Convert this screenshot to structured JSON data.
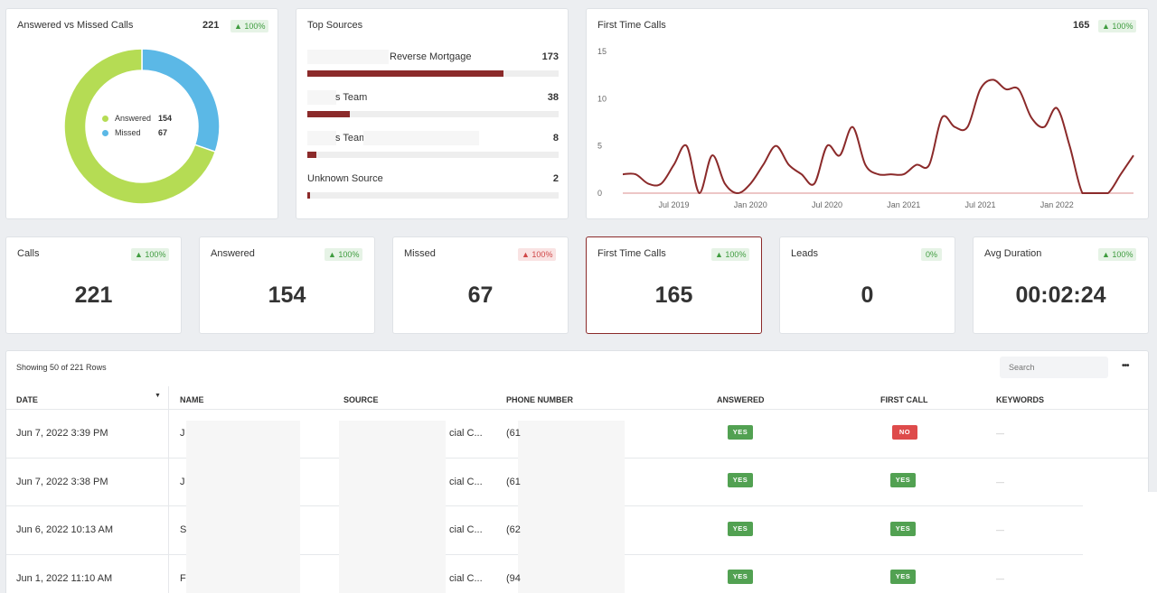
{
  "donut_card": {
    "title": "Answered vs Missed Calls",
    "total": "221",
    "change": "100%",
    "legend": [
      {
        "label": "Answered",
        "value": "154",
        "color": "#b5dc54"
      },
      {
        "label": "Missed",
        "value": "67",
        "color": "#5bb8e6"
      }
    ]
  },
  "sources_card": {
    "title": "Top Sources",
    "items": [
      {
        "label": "Reverse Mortgage",
        "count": "173",
        "fraction": 0.78
      },
      {
        "label": "s Team",
        "count": "38",
        "fraction": 0.17
      },
      {
        "label": "s Team",
        "count": "8",
        "fraction": 0.035
      },
      {
        "label": "Unknown Source",
        "count": "2",
        "fraction": 0.01
      }
    ]
  },
  "line_card": {
    "title": "First Time Calls",
    "total": "165",
    "change": "100%"
  },
  "chart_data": {
    "type": "line",
    "title": "First Time Calls",
    "ylim": [
      0,
      15
    ],
    "y_ticks": [
      "15",
      "10",
      "5",
      "0"
    ],
    "x_ticks": [
      "Jul 2019",
      "Jan 2020",
      "Jul 2020",
      "Jan 2021",
      "Jul 2021",
      "Jan 2022"
    ],
    "series": [
      {
        "color": "#8b2a2a",
        "points": [
          [
            "2019-03",
            2
          ],
          [
            "2019-04",
            2
          ],
          [
            "2019-05",
            1
          ],
          [
            "2019-06",
            1
          ],
          [
            "2019-07",
            3
          ],
          [
            "2019-08",
            5
          ],
          [
            "2019-09",
            0
          ],
          [
            "2019-10",
            4
          ],
          [
            "2019-11",
            1
          ],
          [
            "2019-12",
            0
          ],
          [
            "2020-01",
            1
          ],
          [
            "2020-02",
            3
          ],
          [
            "2020-03",
            5
          ],
          [
            "2020-04",
            3
          ],
          [
            "2020-05",
            2
          ],
          [
            "2020-06",
            1
          ],
          [
            "2020-07",
            5
          ],
          [
            "2020-08",
            4
          ],
          [
            "2020-09",
            7
          ],
          [
            "2020-10",
            3
          ],
          [
            "2020-11",
            2
          ],
          [
            "2020-12",
            2
          ],
          [
            "2021-01",
            2
          ],
          [
            "2021-02",
            3
          ],
          [
            "2021-03",
            3
          ],
          [
            "2021-04",
            8
          ],
          [
            "2021-05",
            7
          ],
          [
            "2021-06",
            7
          ],
          [
            "2021-07",
            11
          ],
          [
            "2021-08",
            12
          ],
          [
            "2021-09",
            11
          ],
          [
            "2021-10",
            11
          ],
          [
            "2021-11",
            8
          ],
          [
            "2021-12",
            7
          ],
          [
            "2022-01",
            9
          ],
          [
            "2022-02",
            5
          ],
          [
            "2022-03",
            0
          ],
          [
            "2022-04",
            0
          ],
          [
            "2022-05",
            0
          ],
          [
            "2022-06",
            2
          ],
          [
            "2022-07",
            4
          ]
        ]
      }
    ]
  },
  "kpis": [
    {
      "label": "Calls",
      "value": "221",
      "change": "100%",
      "trend": "up"
    },
    {
      "label": "Answered",
      "value": "154",
      "change": "100%",
      "trend": "up"
    },
    {
      "label": "Missed",
      "value": "67",
      "change": "100%",
      "trend": "down"
    },
    {
      "label": "First Time Calls",
      "value": "165",
      "change": "100%",
      "trend": "up"
    },
    {
      "label": "Leads",
      "value": "0",
      "change": "0%",
      "trend": "flat"
    },
    {
      "label": "Avg Duration",
      "value": "00:02:24",
      "change": "100%",
      "trend": "up"
    }
  ],
  "table": {
    "showing": "Showing 50 of 221 Rows",
    "search_placeholder": "Search",
    "more_label": "•••",
    "columns": [
      "DATE",
      "NAME",
      "SOURCE",
      "PHONE NUMBER",
      "ANSWERED",
      "FIRST CALL",
      "KEYWORDS"
    ],
    "rows": [
      {
        "date": "Jun 7, 2022 3:39 PM",
        "name": "J",
        "source": "cial C...",
        "phone": "(61",
        "answered": "YES",
        "first_call": "NO",
        "keywords": "—"
      },
      {
        "date": "Jun 7, 2022 3:38 PM",
        "name": "J",
        "source": "cial C...",
        "phone": "(61",
        "answered": "YES",
        "first_call": "YES",
        "keywords": "—"
      },
      {
        "date": "Jun 6, 2022 10:13 AM",
        "name": "S",
        "source": "cial C...",
        "phone": "(62",
        "answered": "YES",
        "first_call": "YES",
        "keywords": "—"
      },
      {
        "date": "Jun 1, 2022 11:10 AM",
        "name": "F",
        "source": "cial C...",
        "phone": "(94",
        "answered": "YES",
        "first_call": "YES",
        "keywords": "—"
      }
    ]
  }
}
